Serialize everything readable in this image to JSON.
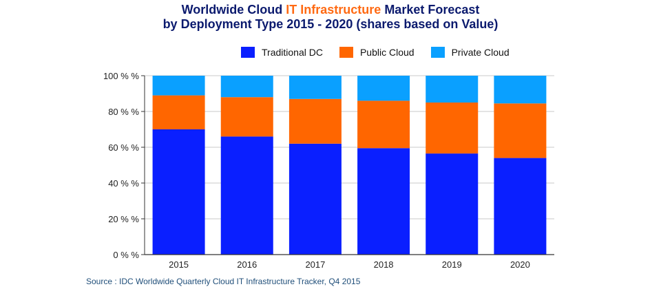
{
  "title": {
    "line1_part1": "Worldwide Cloud ",
    "line1_highlight": "IT Infrastructure",
    "line1_part2": " Market Forecast",
    "line2": "by Deployment Type  2015 - 2020 (shares based on Value)"
  },
  "colors": {
    "title": "#0b1a6e",
    "highlight": "#ff6a13",
    "traditional_dc": "#0a1fff",
    "public_cloud": "#ff6600",
    "private_cloud": "#0aa0ff",
    "source": "#1f4e79"
  },
  "legend": [
    {
      "label": "Traditional DC",
      "color": "#0a1fff"
    },
    {
      "label": "Public Cloud",
      "color": "#ff6600"
    },
    {
      "label": "Private Cloud",
      "color": "#0aa0ff"
    }
  ],
  "chart_data": {
    "type": "bar",
    "stacked": true,
    "categories": [
      "2015",
      "2016",
      "2017",
      "2018",
      "2019",
      "2020"
    ],
    "series": [
      {
        "name": "Traditional DC",
        "color": "#0a1fff",
        "values": [
          70,
          66,
          62,
          59.5,
          56.5,
          54
        ]
      },
      {
        "name": "Public Cloud",
        "color": "#ff6600",
        "values": [
          19,
          22,
          25,
          26.5,
          28.5,
          30.5
        ]
      },
      {
        "name": "Private Cloud",
        "color": "#0aa0ff",
        "values": [
          11,
          12,
          13,
          14,
          15,
          15.5
        ]
      }
    ],
    "ylim": [
      0,
      100
    ],
    "yticks": [
      0,
      20,
      40,
      60,
      80,
      100
    ],
    "ytick_labels": [
      "0 % %",
      "20 % %",
      "40 % %",
      "60 % %",
      "80 % %",
      "100 % %"
    ],
    "grid": true,
    "legend_position": "top"
  },
  "source": "Source : IDC Worldwide Quarterly Cloud IT Infrastructure Tracker, Q4 2015"
}
